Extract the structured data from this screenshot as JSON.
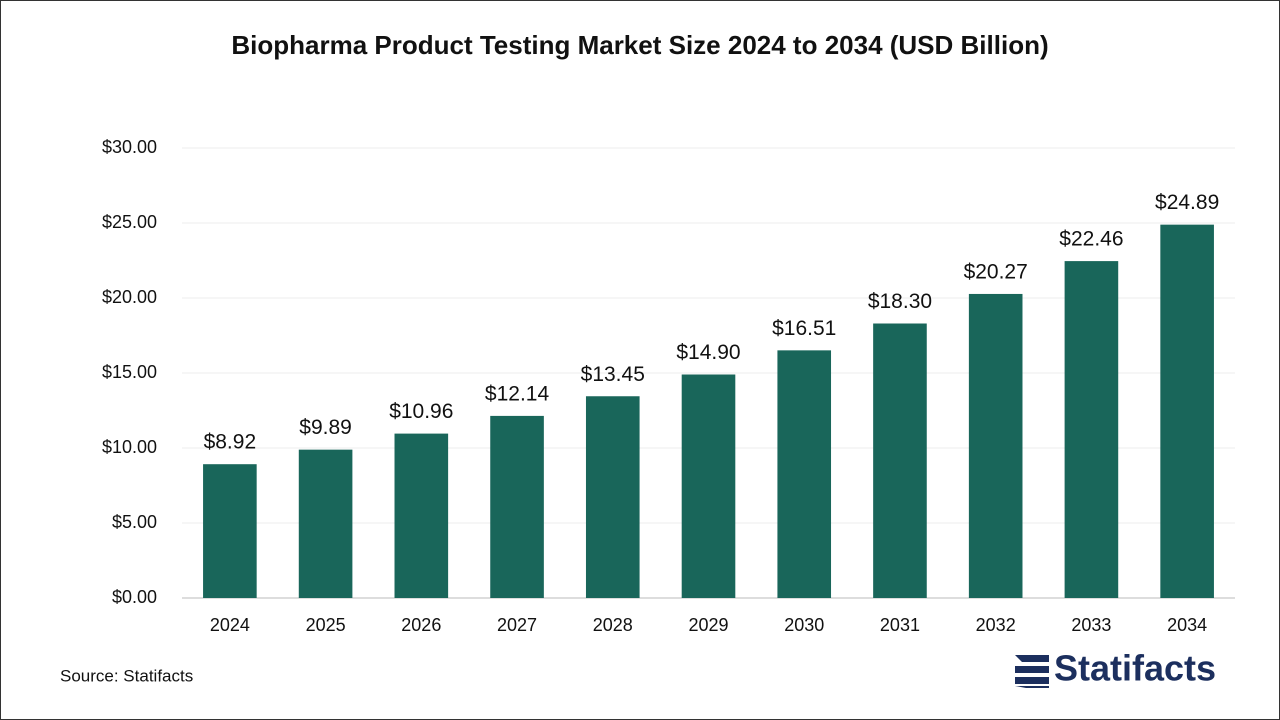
{
  "chart_data": {
    "type": "bar",
    "title": "Biopharma Product Testing Market Size 2024 to 2034 (USD Billion)",
    "categories": [
      "2024",
      "2025",
      "2026",
      "2027",
      "2028",
      "2029",
      "2030",
      "2031",
      "2032",
      "2033",
      "2034"
    ],
    "values": [
      8.92,
      9.89,
      10.96,
      12.14,
      13.45,
      14.9,
      16.51,
      18.3,
      20.27,
      22.46,
      24.89
    ],
    "value_labels": [
      "$8.92",
      "$9.89",
      "$10.96",
      "$12.14",
      "$13.45",
      "$14.90",
      "$16.51",
      "$18.30",
      "$20.27",
      "$22.46",
      "$24.89"
    ],
    "color": "#19665a",
    "ylim": [
      0,
      30
    ],
    "yticks": [
      {
        "value": 0,
        "label": "$0.00"
      },
      {
        "value": 5,
        "label": "$5.00"
      },
      {
        "value": 10,
        "label": "$10.00"
      },
      {
        "value": 15,
        "label": "$15.00"
      },
      {
        "value": 20,
        "label": "$20.00"
      },
      {
        "value": 25,
        "label": "$25.00"
      },
      {
        "value": 30,
        "label": "$30.00"
      }
    ],
    "grid": true,
    "source": "Source: Statifacts",
    "logo": "Statifacts"
  }
}
